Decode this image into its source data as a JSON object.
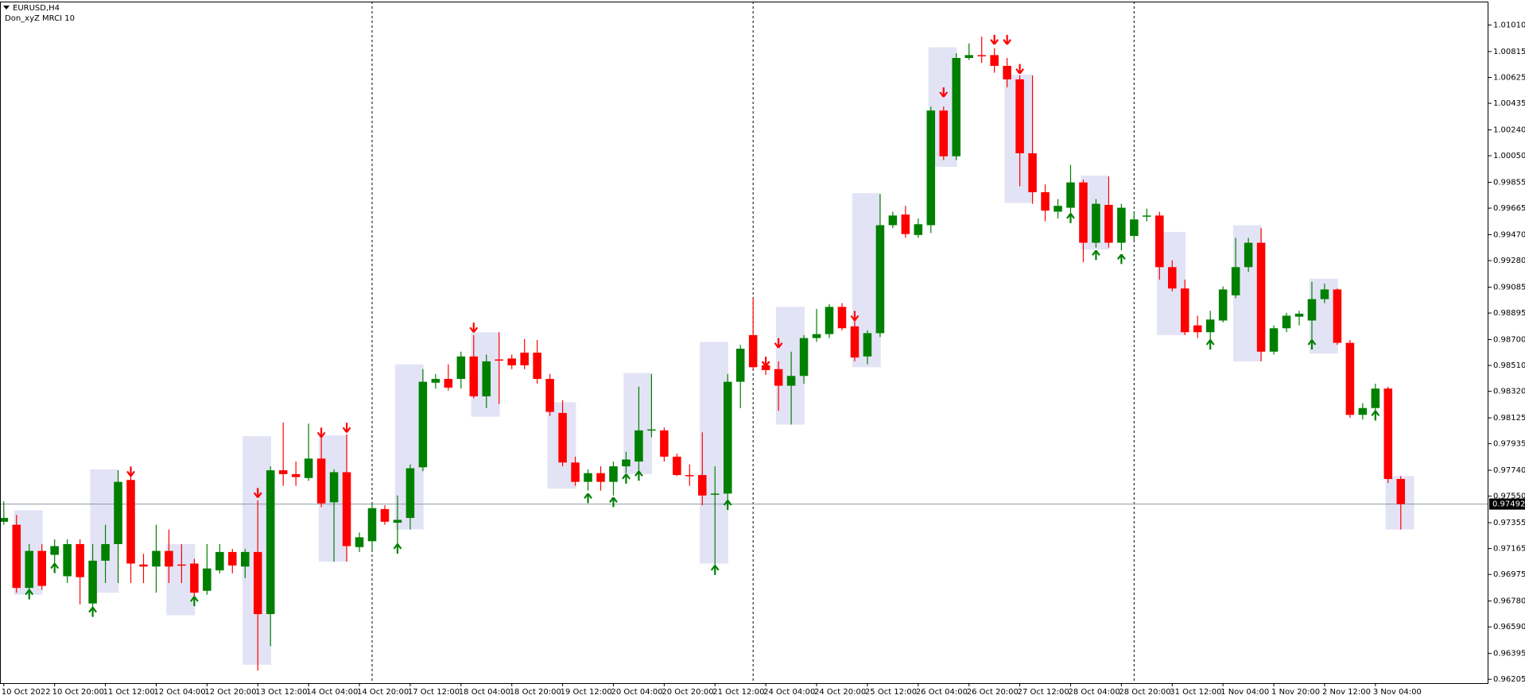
{
  "chart_data": {
    "type": "candlestick",
    "title": "EURUSD,H4",
    "categories": [
      "10 Oct 2022",
      null,
      null,
      null,
      "10 Oct 20:00",
      null,
      null,
      null,
      "11 Oct 12:00",
      null,
      null,
      null,
      "12 Oct 04:00",
      null,
      null,
      null,
      "12 Oct 20:00",
      null,
      null,
      null,
      "13 Oct 12:00",
      null,
      null,
      null,
      "14 Oct 04:00",
      null,
      null,
      null,
      "14 Oct 20:00",
      null,
      null,
      null,
      "17 Oct 12:00",
      null,
      null,
      null,
      "18 Oct 04:00",
      null,
      null,
      null,
      "18 Oct 20:00",
      null,
      null,
      null,
      "19 Oct 12:00",
      null,
      null,
      null,
      "20 Oct 04:00",
      null,
      null,
      null,
      "20 Oct 20:00",
      null,
      null,
      null,
      "21 Oct 12:00",
      null,
      null,
      null,
      "24 Oct 04:00",
      null,
      null,
      null,
      "24 Oct 20:00",
      null,
      null,
      null,
      "25 Oct 12:00",
      null,
      null,
      null,
      "26 Oct 04:00",
      null,
      null,
      null,
      "26 Oct 20:00",
      null,
      null,
      null,
      "27 Oct 12:00",
      null,
      null,
      null,
      "28 Oct 04:00",
      null,
      null,
      null,
      "28 Oct 20:00",
      null,
      null,
      null,
      "31 Oct 12:00",
      null,
      null,
      null,
      "1 Nov 04:00",
      null,
      null,
      null,
      "1 Nov 20:00",
      null,
      null,
      null,
      "2 Nov 12:00",
      null,
      null,
      null,
      "3 Nov 04:00",
      null,
      null
    ],
    "open": [
      0.97362,
      0.9734,
      0.96876,
      0.97148,
      0.97119,
      0.96962,
      0.97198,
      0.96762,
      0.97076,
      0.97198,
      0.97669,
      0.97048,
      0.97033,
      0.97148,
      0.97048,
      0.97055,
      0.96855,
      0.97005,
      0.9714,
      0.97033,
      0.9714,
      0.96684,
      0.9774,
      0.97712,
      0.97683,
      0.97826,
      0.97505,
      0.97726,
      0.97176,
      0.97219,
      0.97455,
      0.97355,
      0.9739,
      0.97762,
      0.98383,
      0.98411,
      0.98411,
      0.98576,
      0.98283,
      0.98554,
      0.98561,
      0.98604,
      0.98604,
      0.98411,
      0.98161,
      0.97797,
      0.97655,
      0.97719,
      0.97655,
      0.97769,
      0.97804,
      0.98033,
      0.98033,
      0.9784,
      0.97705,
      0.97705,
      0.97562,
      0.97569,
      0.9839,
      0.98733,
      0.98511,
      0.98483,
      0.98361,
      0.98433,
      0.98711,
      0.9874,
      0.9894,
      0.98797,
      0.98576,
      0.98747,
      0.9954,
      0.99618,
      0.99468,
      0.9954,
      1.00382,
      1.00046,
      1.00768,
      1.00789,
      1.00789,
      1.0071,
      1.00611,
      1.00068,
      0.99782,
      0.99639,
      0.99668,
      0.99854,
      0.99411,
      0.99689,
      0.99411,
      0.99461,
      0.99604,
      0.99611,
      0.99232,
      0.99075,
      0.98804,
      0.98754,
      0.9884,
      0.99025,
      0.99232,
      0.99411,
      0.98611,
      0.98783,
      0.98868,
      0.9884,
      0.98997,
      0.99068,
      0.98676,
      0.98147,
      0.98197,
      0.9834,
      0.97676
    ],
    "high": [
      0.97512,
      0.97412,
      0.97198,
      0.97198,
      0.97233,
      0.97233,
      0.97233,
      0.97198,
      0.9734,
      0.9774,
      0.97733,
      0.97126,
      0.9734,
      0.97305,
      0.97198,
      0.9709,
      0.97198,
      0.97198,
      0.97162,
      0.97162,
      0.97519,
      0.97769,
      0.9809,
      0.97804,
      0.98083,
      0.98004,
      0.97747,
      0.98004,
      0.97283,
      0.97497,
      0.97483,
      0.97555,
      0.97783,
      0.98483,
      0.98447,
      0.98518,
      0.98611,
      0.98733,
      0.9859,
      0.98754,
      0.9859,
      0.98704,
      0.98697,
      0.98447,
      0.98254,
      0.9784,
      0.97747,
      0.97769,
      0.97804,
      0.97876,
      0.98354,
      0.98447,
      0.98054,
      0.97862,
      0.97783,
      0.98019,
      0.97769,
      0.98447,
      0.98661,
      0.99004,
      0.9854,
      0.9854,
      0.98611,
      0.98733,
      0.98925,
      0.98961,
      0.98968,
      0.9884,
      0.98768,
      0.99768,
      0.99639,
      0.99682,
      0.99589,
      1.00411,
      1.00411,
      1.00803,
      1.00875,
      1.00925,
      1.00839,
      1.00768,
      1.00639,
      1.00639,
      0.99839,
      0.99732,
      0.99982,
      0.99875,
      0.99732,
      0.99897,
      0.99697,
      0.99639,
      0.99661,
      0.99639,
      0.99282,
      0.9914,
      0.98875,
      0.98911,
      0.9909,
      0.99447,
      0.99447,
      0.99518,
      0.98804,
      0.98897,
      0.98911,
      0.99125,
      0.99111,
      0.99075,
      0.98697,
      0.98233,
      0.98376,
      0.98354,
      0.97697
    ],
    "low": [
      0.9734,
      0.96841,
      0.96841,
      0.96862,
      0.97019,
      0.96912,
      0.96755,
      0.96698,
      0.96912,
      0.96912,
      0.96912,
      0.96912,
      0.96841,
      0.96912,
      0.96912,
      0.96755,
      0.96826,
      0.96983,
      0.96983,
      0.96948,
      0.96269,
      0.96448,
      0.97626,
      0.97626,
      0.97662,
      0.97469,
      0.97069,
      0.97069,
      0.9714,
      0.97155,
      0.9734,
      0.97198,
      0.97305,
      0.97733,
      0.9834,
      0.98326,
      0.9834,
      0.98269,
      0.98197,
      0.98226,
      0.98483,
      0.98483,
      0.98376,
      0.9814,
      0.97769,
      0.97626,
      0.9759,
      0.9759,
      0.97555,
      0.97719,
      0.97733,
      0.97983,
      0.97804,
      0.97697,
      0.97626,
      0.97483,
      0.97041,
      0.97519,
      0.98197,
      0.98483,
      0.9844,
      0.98176,
      0.98076,
      0.98376,
      0.98683,
      0.98711,
      0.98768,
      0.9854,
      0.98518,
      0.98718,
      0.99518,
      0.99447,
      0.99447,
      0.99482,
      1.00018,
      1.00018,
      1.00753,
      1.00732,
      1.0066,
      1.00553,
      0.99825,
      0.99697,
      0.99568,
      0.99589,
      0.99625,
      0.99268,
      0.99375,
      0.99375,
      0.99354,
      0.99432,
      0.99568,
      0.9914,
      0.99054,
      0.98733,
      0.98711,
      0.98683,
      0.98826,
      0.99004,
      0.99197,
      0.9854,
      0.9859,
      0.98754,
      0.98804,
      0.98676,
      0.98968,
      0.98661,
      0.98126,
      0.98112,
      0.98161,
      0.97647,
      0.97305
    ],
    "close": [
      0.9739,
      0.96876,
      0.97148,
      0.96891,
      0.97183,
      0.97198,
      0.96955,
      0.97076,
      0.97198,
      0.97655,
      0.97055,
      0.97033,
      0.97148,
      0.97033,
      0.97041,
      0.96841,
      0.97019,
      0.9714,
      0.97041,
      0.9714,
      0.96684,
      0.9774,
      0.97712,
      0.9769,
      0.97826,
      0.97497,
      0.97726,
      0.97183,
      0.97248,
      0.97462,
      0.97362,
      0.97376,
      0.97755,
      0.9839,
      0.98411,
      0.98347,
      0.98576,
      0.98283,
      0.9854,
      0.98547,
      0.98511,
      0.98511,
      0.98411,
      0.98169,
      0.97797,
      0.97655,
      0.97719,
      0.97655,
      0.97769,
      0.97819,
      0.98033,
      0.9804,
      0.9784,
      0.97705,
      0.97697,
      0.97555,
      0.97569,
      0.9839,
      0.98633,
      0.98497,
      0.98476,
      0.98361,
      0.98433,
      0.98711,
      0.9874,
      0.9894,
      0.98783,
      0.98568,
      0.98747,
      0.9954,
      0.99611,
      0.99475,
      0.99547,
      1.00382,
      1.00046,
      1.00768,
      1.00789,
      1.00782,
      1.0071,
      1.00611,
      1.00068,
      0.99782,
      0.99647,
      0.99682,
      0.99854,
      0.99411,
      0.99697,
      0.99411,
      0.99668,
      0.99582,
      0.99611,
      0.99232,
      0.99075,
      0.98754,
      0.98754,
      0.98847,
      0.99068,
      0.99232,
      0.99411,
      0.98611,
      0.98783,
      0.98875,
      0.9889,
      0.98997,
      0.99068,
      0.98676,
      0.98147,
      0.98197,
      0.9834,
      0.97676,
      0.97492
    ],
    "up_color": "#008000",
    "down_color": "#ff0000",
    "xlim": [
      -0.3,
      116.9
    ],
    "ylim": [
      0.96177,
      1.01182
    ],
    "yticks": [
      {
        "value": 1.0101,
        "label": "1.01010"
      },
      1.00815,
      1.00625,
      1.00435,
      {
        "value": 1.0024,
        "label": "1.00240"
      },
      {
        "value": 1.0005,
        "label": "1.00050"
      },
      0.99855,
      0.99665,
      {
        "value": 0.9947,
        "label": "0.99470"
      },
      {
        "value": 0.9928,
        "label": "0.99280"
      },
      0.99085,
      0.98895,
      {
        "value": 0.987,
        "label": "0.98700"
      },
      {
        "value": 0.9851,
        "label": "0.98510"
      },
      {
        "value": 0.9832,
        "label": "0.98320"
      },
      0.98125,
      0.97935,
      {
        "value": 0.9774,
        "label": "0.97740"
      },
      {
        "value": 0.9755,
        "label": "0.97550"
      },
      0.97355,
      0.97165,
      0.96975,
      {
        "value": 0.9678,
        "label": "0.96780"
      },
      {
        "value": 0.9659,
        "label": "0.96590"
      },
      0.96395,
      0.96205
    ],
    "grid": false,
    "current_price": 0.97492,
    "period_separators": [
      29,
      59,
      89
    ],
    "indicator": {
      "name": "Don_xyZ MRCI 10",
      "box_color": "#e3e3f6",
      "up_color": "#008000",
      "down_color": "#ff0000",
      "boxes": [
        {
          "x0": 1,
          "x1": 3,
          "high": 0.97447,
          "low": 0.96826
        },
        {
          "x0": 7,
          "x1": 9,
          "high": 0.97747,
          "low": 0.96841
        },
        {
          "x0": 13,
          "x1": 15,
          "high": 0.97198,
          "low": 0.96676
        },
        {
          "x0": 19,
          "x1": 21,
          "high": 0.9799,
          "low": 0.96312
        },
        {
          "x0": 25,
          "x1": 27,
          "high": 0.97997,
          "low": 0.97069
        },
        {
          "x0": 31,
          "x1": 33,
          "high": 0.98518,
          "low": 0.97305
        },
        {
          "x0": 37,
          "x1": 39,
          "high": 0.98754,
          "low": 0.98133
        },
        {
          "x0": 43,
          "x1": 45,
          "high": 0.9824,
          "low": 0.97605
        },
        {
          "x0": 49,
          "x1": 51,
          "high": 0.98454,
          "low": 0.97712
        },
        {
          "x0": 55,
          "x1": 57,
          "high": 0.98683,
          "low": 0.97055
        },
        {
          "x0": 61,
          "x1": 63,
          "high": 0.9894,
          "low": 0.98076
        },
        {
          "x0": 67,
          "x1": 69,
          "high": 0.99775,
          "low": 0.98497
        },
        {
          "x0": 73,
          "x1": 75,
          "high": 1.00846,
          "low": 0.99968
        },
        {
          "x0": 79,
          "x1": 81,
          "high": 1.00646,
          "low": 0.99704
        },
        {
          "x0": 85,
          "x1": 87,
          "high": 0.99904,
          "low": 0.99361
        },
        {
          "x0": 91,
          "x1": 93,
          "high": 0.9949,
          "low": 0.98733
        },
        {
          "x0": 97,
          "x1": 99,
          "high": 0.9954,
          "low": 0.9854
        },
        {
          "x0": 103,
          "x1": 105,
          "high": 0.99147,
          "low": 0.98597
        },
        {
          "x0": 109,
          "x1": 111,
          "high": 0.97697,
          "low": 0.97305
        }
      ],
      "up_arrows": [
        {
          "x": 2,
          "y": 0.96862
        },
        {
          "x": 4,
          "y": 0.97055
        },
        {
          "x": 7,
          "y": 0.96733
        },
        {
          "x": 15,
          "y": 0.96812
        },
        {
          "x": 31,
          "y": 0.97198
        },
        {
          "x": 46,
          "y": 0.97569
        },
        {
          "x": 48,
          "y": 0.9754
        },
        {
          "x": 49,
          "y": 0.97712
        },
        {
          "x": 50,
          "y": 0.97733
        },
        {
          "x": 56,
          "y": 0.97041
        },
        {
          "x": 57,
          "y": 0.97519
        },
        {
          "x": 84,
          "y": 0.99625
        },
        {
          "x": 86,
          "y": 0.99354
        },
        {
          "x": 88,
          "y": 0.99325
        },
        {
          "x": 95,
          "y": 0.98697
        },
        {
          "x": 103,
          "y": 0.98697
        },
        {
          "x": 108,
          "y": 0.98176
        }
      ],
      "down_arrows": [
        {
          "x": 10,
          "y": 0.97697
        },
        {
          "x": 20,
          "y": 0.9754
        },
        {
          "x": 25,
          "y": 0.97983
        },
        {
          "x": 27,
          "y": 0.98019
        },
        {
          "x": 37,
          "y": 0.98754
        },
        {
          "x": 60,
          "y": 0.98504
        },
        {
          "x": 61,
          "y": 0.9864
        },
        {
          "x": 67,
          "y": 0.9884
        },
        {
          "x": 74,
          "y": 1.00482
        },
        {
          "x": 78,
          "y": 1.00868
        },
        {
          "x": 79,
          "y": 1.00868
        },
        {
          "x": 80,
          "y": 1.00653
        }
      ]
    }
  }
}
